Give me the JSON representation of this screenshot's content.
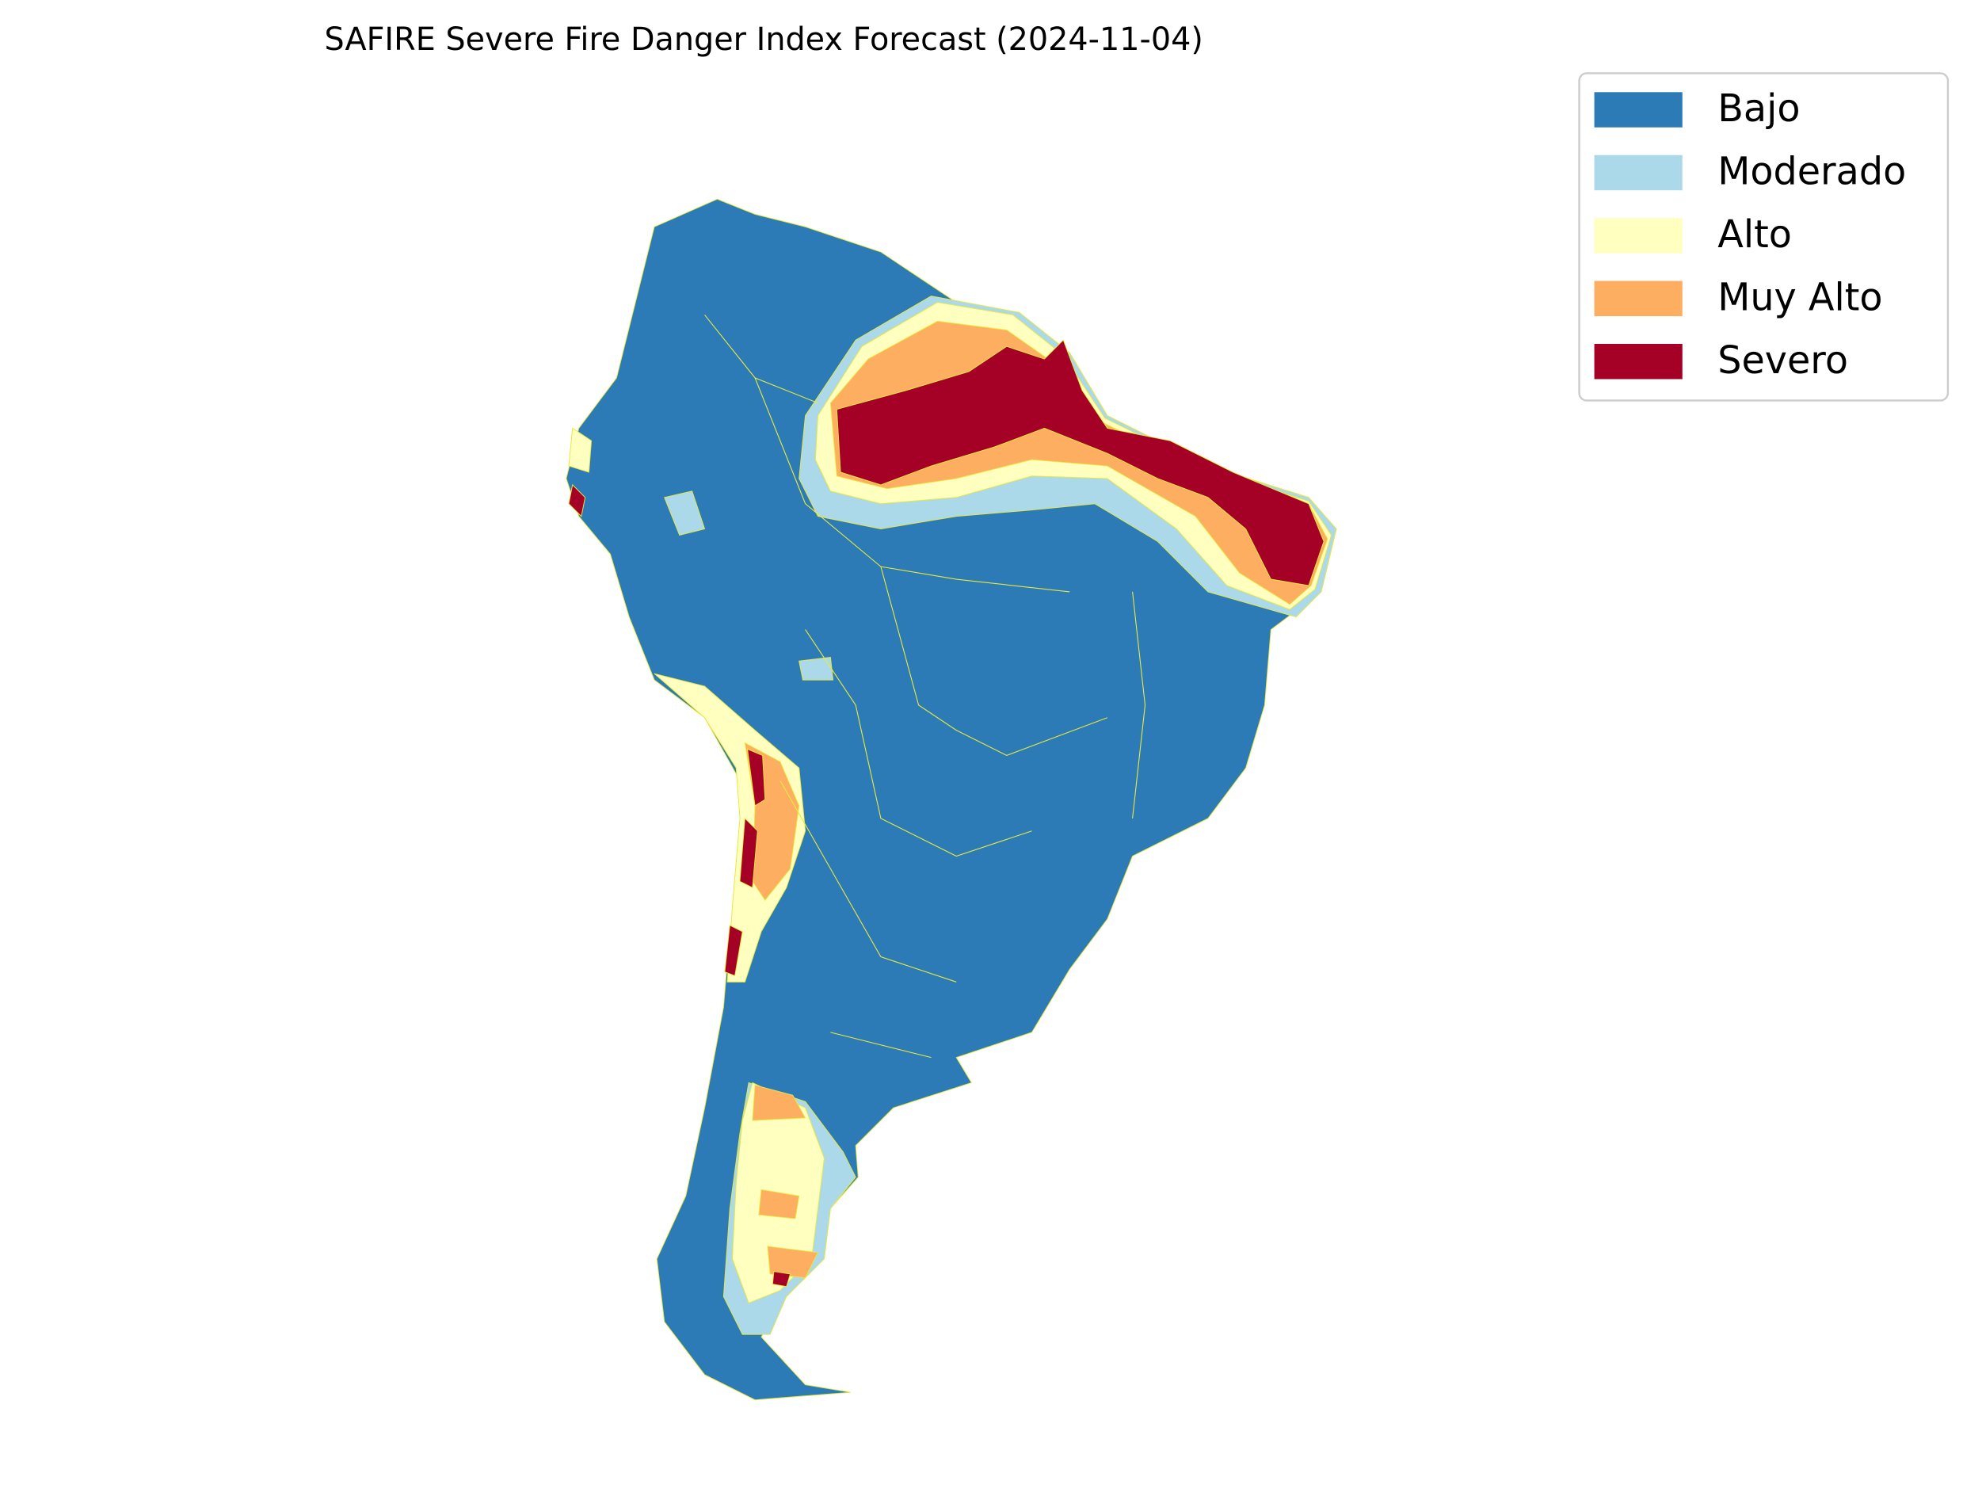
{
  "title": "SAFIRE Severe Fire Danger Index Forecast (2024-11-04)",
  "legend": {
    "items": [
      {
        "label": "Bajo",
        "color": "#2c7bb6"
      },
      {
        "label": "Moderado",
        "color": "#abd9e9"
      },
      {
        "label": "Alto",
        "color": "#ffffbf"
      },
      {
        "label": "Muy Alto",
        "color": "#fdae61"
      },
      {
        "label": "Severo",
        "color": "#a50026"
      }
    ]
  }
}
